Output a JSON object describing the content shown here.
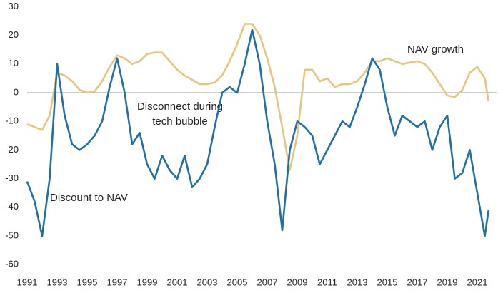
{
  "chart_data": {
    "type": "line",
    "x": [
      1991,
      1991.5,
      1992,
      1992.5,
      1993,
      1993.5,
      1994,
      1994.5,
      1995,
      1995.5,
      1996,
      1996.5,
      1997,
      1997.5,
      1998,
      1998.5,
      1999,
      1999.5,
      2000,
      2000.5,
      2001,
      2001.5,
      2002,
      2002.5,
      2003,
      2003.5,
      2004,
      2004.5,
      2005,
      2005.5,
      2006,
      2006.5,
      2007,
      2007.5,
      2008,
      2008.5,
      2009,
      2009.5,
      2010,
      2010.5,
      2011,
      2011.5,
      2012,
      2012.5,
      2013,
      2013.5,
      2014,
      2014.5,
      2015,
      2015.5,
      2016,
      2016.5,
      2017,
      2017.5,
      2018,
      2018.5,
      2019,
      2019.5,
      2020,
      2020.5,
      2021,
      2021.5,
      2021.75
    ],
    "series": [
      {
        "name": "NAV growth",
        "color": "#e6c57e",
        "values": [
          -11,
          -12,
          -13,
          -8,
          7,
          6,
          4,
          1,
          0,
          0.5,
          4,
          9,
          13,
          12,
          10,
          11,
          13.5,
          14,
          14,
          11,
          8,
          6,
          4.5,
          3,
          3,
          3.5,
          6,
          11,
          17,
          24,
          24,
          20,
          12,
          2,
          -12,
          -27,
          -15,
          8,
          8,
          4,
          5,
          2,
          3,
          3,
          4,
          7,
          11,
          11,
          12,
          11,
          10,
          10.5,
          11,
          10,
          7,
          3,
          -1,
          -1.5,
          1,
          7,
          9,
          5,
          -3
        ]
      },
      {
        "name": "Discount to NAV",
        "color": "#1f6fa8",
        "values": [
          -31,
          -38,
          -50,
          -30,
          10,
          -8,
          -18,
          -20,
          -18,
          -15,
          -10,
          2,
          12,
          0,
          -18,
          -14,
          -25,
          -30,
          -22,
          -27,
          -30,
          -22,
          -33,
          -30,
          -25,
          -12,
          0,
          2,
          0,
          10,
          22,
          10,
          -10,
          -25,
          -48,
          -20,
          -10,
          -12,
          -15,
          -25,
          -20,
          -15,
          -10,
          -12,
          -5,
          3,
          12,
          8,
          -5,
          -15,
          -8,
          -10,
          -12,
          -10,
          -20,
          -12,
          -8,
          -30,
          -28,
          -20,
          -35,
          -50,
          -41
        ]
      }
    ],
    "annotations": [
      "Disconnect during",
      "tech bubble"
    ],
    "xlim": [
      1991,
      2022
    ],
    "xticks": [
      1991,
      1993,
      1995,
      1997,
      1999,
      2001,
      2003,
      2005,
      2007,
      2009,
      2011,
      2013,
      2015,
      2017,
      2019,
      2021
    ],
    "ylim": [
      -60,
      30
    ],
    "yticks": [
      -60,
      -50,
      -40,
      -30,
      -20,
      -10,
      0,
      10,
      20,
      30
    ]
  }
}
